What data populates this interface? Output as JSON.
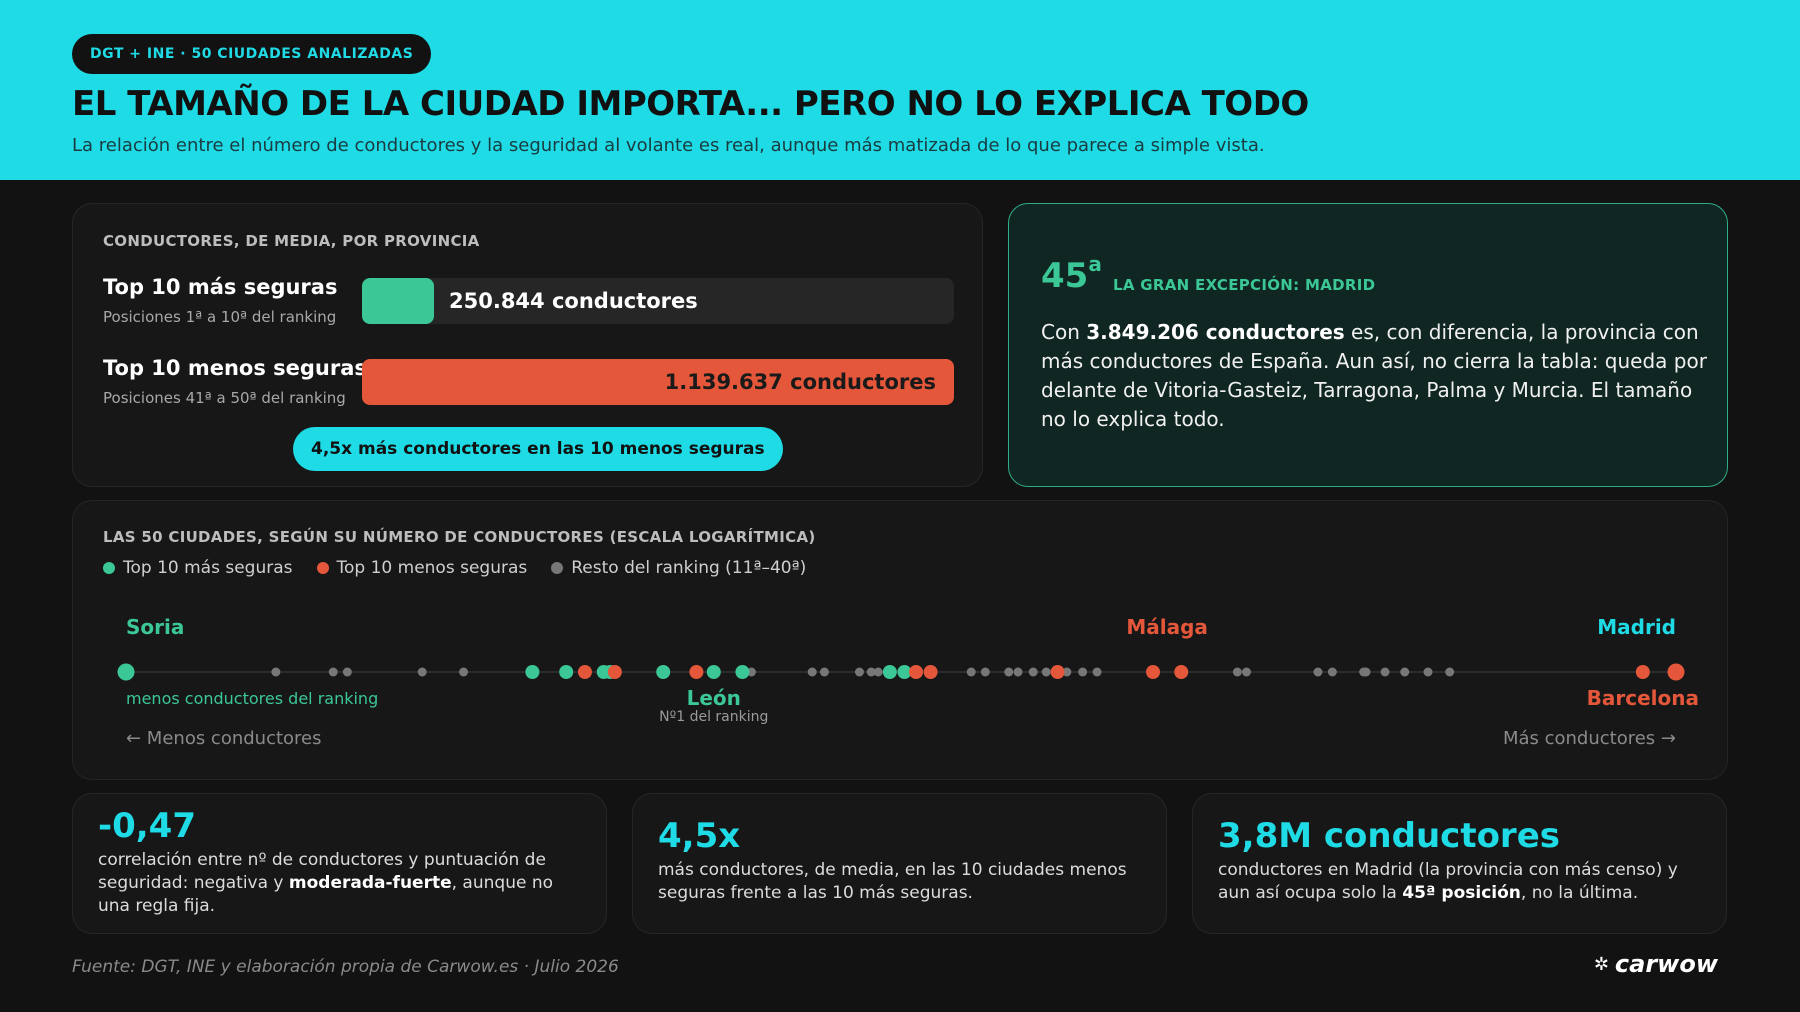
{
  "header": {
    "tag": "DGT + INE · 50 CIUDADES ANALIZADAS",
    "title": "EL TAMAÑO DE LA CIUDAD IMPORTA... PERO NO LO EXPLICA TODO",
    "subtitle": "La relación entre el número de conductores y la seguridad al volante es real, aunque más matizada de lo que parece a simple vista."
  },
  "colors": {
    "accent": "#1fdbe6",
    "safe": "#3cc796",
    "unsafe": "#e4573a",
    "rest": "#777777",
    "background": "#121212"
  },
  "compare": {
    "heading": "CONDUCTORES, DE MEDIA, POR PROVINCIA",
    "rows": [
      {
        "title": "Top 10 más seguras",
        "sub": "Posiciones 1ª a 10ª del ranking",
        "value_label": "250.844 conductores",
        "value": 250844
      },
      {
        "title": "Top 10 menos seguras",
        "sub": "Posiciones 41ª a 50ª del ranking",
        "value_label": "1.139.637 conductores",
        "value": 1139637
      }
    ],
    "ratio_pill": "4,5x más conductores en las 10 menos seguras"
  },
  "madrid_card": {
    "rank": "45",
    "rank_sup": "a",
    "label": "LA GRAN EXCEPCIÓN: MADRID",
    "text_before": "Con ",
    "text_bold": "3.849.206 conductores",
    "text_after": " es, con diferencia, la provincia con más conductores de España. Aun así, no cierra la tabla: queda por delante de Vitoria-Gasteiz, Tarragona, Palma y Murcia. El tamaño no lo explica todo."
  },
  "chart_data": {
    "type": "scatter",
    "title": "LAS 50 CIUDADES, SEGÚN SU NÚMERO DE CONDUCTORES (ESCALA LOGARÍTMICA)",
    "x_scale": "log",
    "axis_left_label": "← Menos conductores",
    "axis_right_label": "Más conductores →",
    "legend": [
      "Top 10 más seguras",
      "Top 10 menos seguras",
      "Resto del ranking (11ª–40ª)"
    ],
    "legend_placement": "top-left",
    "series": [
      {
        "name": "Top 10 más seguras",
        "group": "safe",
        "values": [
          0.0,
          0.2622,
          0.284,
          0.3082,
          0.3124,
          0.3466,
          0.3792,
          0.3977,
          0.4928,
          0.5022
        ]
      },
      {
        "name": "Top 10 menos seguras",
        "group": "unsafe",
        "values": [
          0.2961,
          0.3154,
          0.368,
          0.5097,
          0.5191,
          0.601,
          0.6626,
          0.6808,
          0.9786,
          1.0
        ]
      },
      {
        "name": "Resto del ranking (11ª–40ª)",
        "group": "rest",
        "values": [
          0.0967,
          0.1337,
          0.1428,
          0.1911,
          0.2178,
          0.4035,
          0.4427,
          0.4506,
          0.4732,
          0.4808,
          0.4853,
          0.5453,
          0.5544,
          0.5695,
          0.5755,
          0.5853,
          0.5937,
          0.607,
          0.6172,
          0.6265,
          0.717,
          0.7229,
          0.769,
          0.7783,
          0.7985,
          0.8,
          0.8123,
          0.825,
          0.84,
          0.854
        ]
      }
    ],
    "annotations": [
      {
        "text": "Soria",
        "pos": 0.0,
        "side": "top",
        "color": "safe",
        "align": "start"
      },
      {
        "text": "menos conductores del ranking",
        "pos": 0.0,
        "side": "below",
        "color": "safe",
        "align": "start",
        "small": true
      },
      {
        "text": "León",
        "pos": 0.3792,
        "side": "below",
        "color": "safe",
        "align": "middle"
      },
      {
        "text": "Nº1 del ranking",
        "pos": 0.3792,
        "side": "below2",
        "color": "muted",
        "align": "middle",
        "small": true
      },
      {
        "text": "Málaga",
        "pos": 0.6717,
        "side": "top",
        "color": "unsafe",
        "align": "middle"
      },
      {
        "text": "Madrid",
        "pos": 1.0,
        "side": "top",
        "color": "accent",
        "align": "end"
      },
      {
        "text": "Barcelona",
        "pos": 0.9786,
        "side": "below",
        "color": "unsafe",
        "align": "middle"
      }
    ]
  },
  "stats": [
    {
      "value": "-0,47",
      "desc_before": "correlación entre nº de conductores y puntuación de seguridad: negativa y ",
      "desc_bold": "moderada-fuerte",
      "desc_after": ", aunque no una regla fija."
    },
    {
      "value": "4,5x",
      "desc_before": "más conductores, de media, en las 10 ciudades menos seguras frente a las 10 más seguras.",
      "desc_bold": "",
      "desc_after": ""
    },
    {
      "value": "3,8M conductores",
      "desc_before": "conductores en Madrid (la provincia con más censo) y aun así ocupa solo la ",
      "desc_bold": "45ª posición",
      "desc_after": ", no la última."
    }
  ],
  "footer": {
    "source": "Fuente: DGT, INE y elaboración propia de Carwow.es · Julio 2026",
    "brand": "carwow",
    "brand_icon": "carwow-logo-icon"
  }
}
